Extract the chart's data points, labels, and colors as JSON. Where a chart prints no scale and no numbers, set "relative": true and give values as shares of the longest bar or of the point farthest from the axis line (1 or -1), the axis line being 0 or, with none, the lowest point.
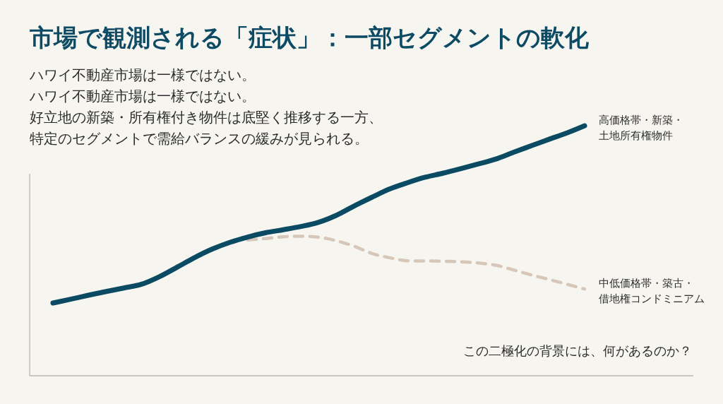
{
  "chart_data": {
    "type": "line",
    "title": "市場で観測される「症状」：一部セグメントの軟化",
    "subtitle": "ハワイ不動産市場は一様ではない。ハワイ不動産市場は一様ではない。好立地の新築・所有権付き物件は底堅く推移する一方、特定のセグメントで需給バランスの緩みが見られる。",
    "annotations": [
      "この二極化の背景には、何があるのか？"
    ],
    "relative": true,
    "categories": [
      null,
      null,
      null,
      null,
      null,
      null,
      null,
      null,
      null,
      null,
      null,
      null,
      null,
      null,
      null,
      null,
      null,
      null,
      null,
      null,
      null,
      null,
      null,
      null,
      null,
      null,
      null,
      null,
      null,
      null,
      null
    ],
    "series": [
      {
        "name": "高価格帯・新築・土地所有権物件",
        "color": "#0b4a63",
        "line_style": "solid",
        "values": [
          0.291,
          0.306,
          0.322,
          0.337,
          0.351,
          0.366,
          0.396,
          0.434,
          0.473,
          0.507,
          0.534,
          0.555,
          0.572,
          0.584,
          0.597,
          0.614,
          0.642,
          0.679,
          0.714,
          0.747,
          0.772,
          0.794,
          0.81,
          0.828,
          0.847,
          0.867,
          0.894,
          0.92,
          0.946,
          0.971,
          1.0
        ]
      },
      {
        "name": "中低価格帯・築古・借地権コンドミニアム",
        "color": "#d6c7b9",
        "line_style": "dashed",
        "values": [
          null,
          null,
          null,
          null,
          null,
          null,
          null,
          null,
          null,
          null,
          null,
          0.543,
          0.549,
          0.556,
          0.558,
          0.554,
          0.54,
          0.518,
          0.489,
          0.472,
          0.46,
          0.459,
          0.458,
          0.456,
          0.451,
          0.442,
          0.423,
          0.403,
          0.385,
          0.366,
          0.347
        ]
      }
    ]
  }
}
